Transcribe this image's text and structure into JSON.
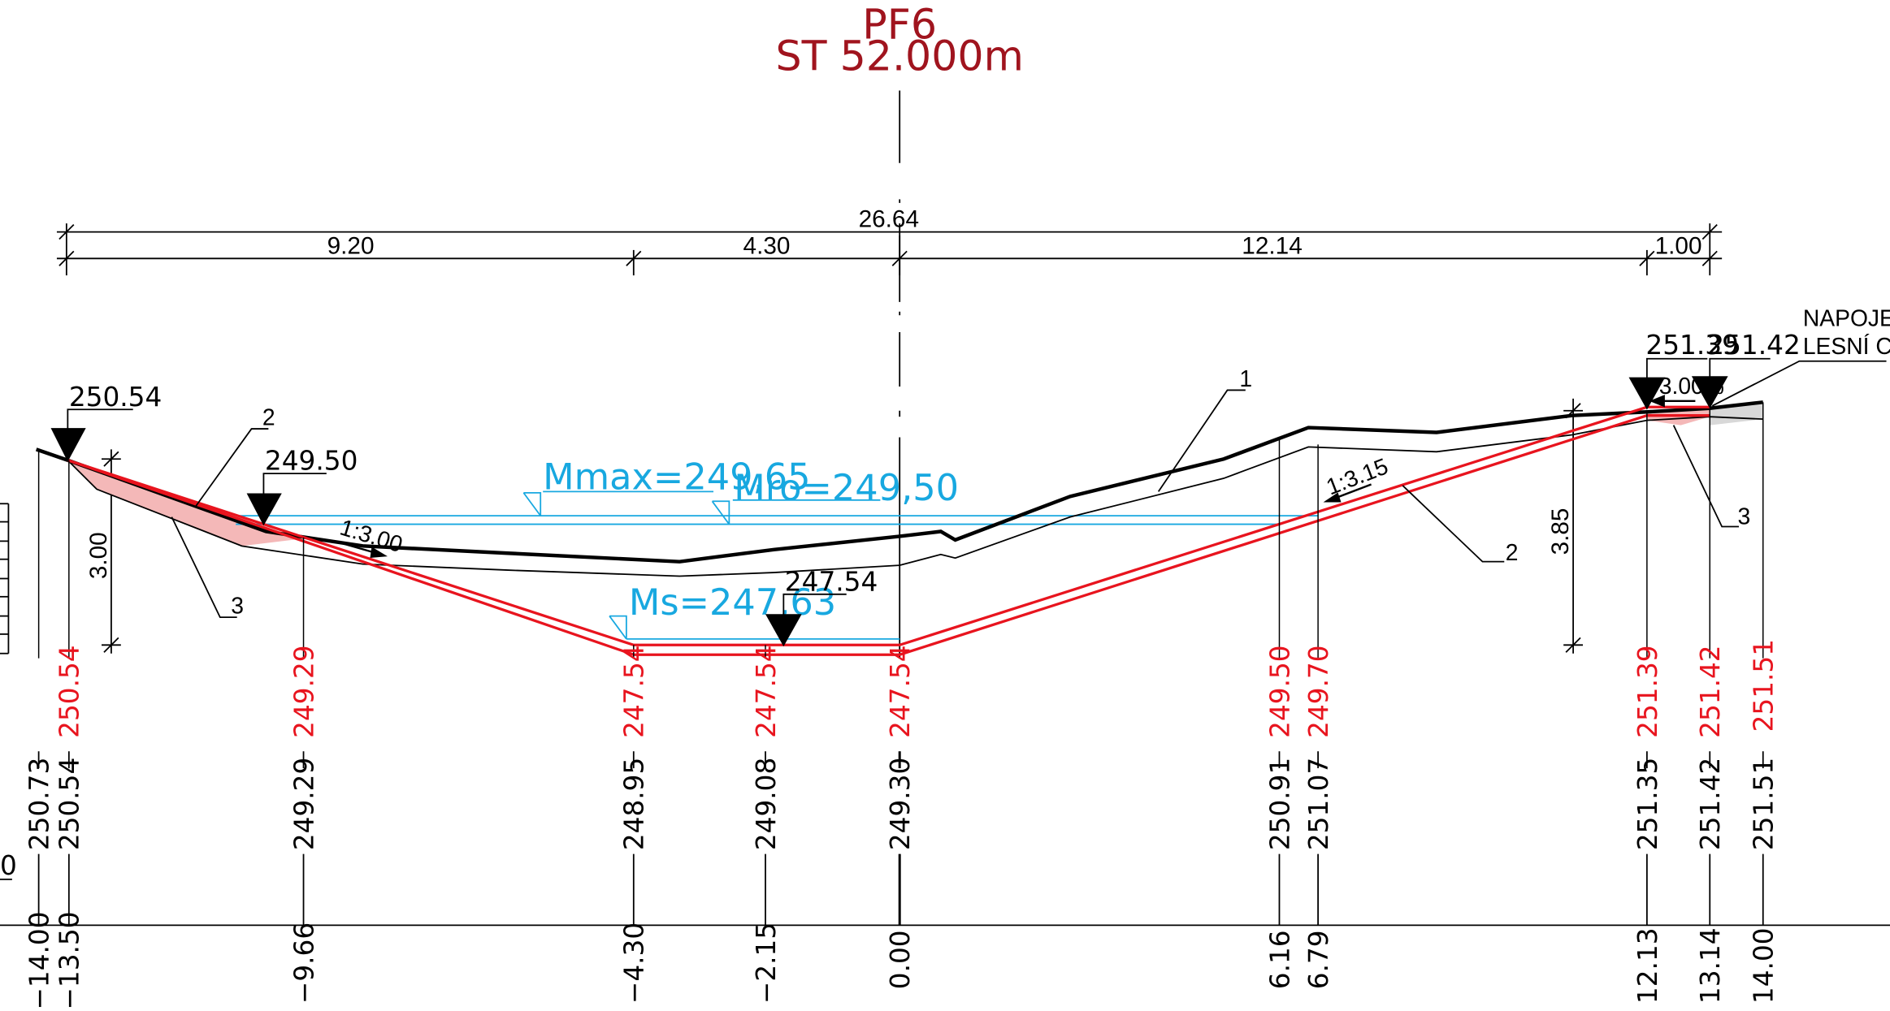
{
  "header": {
    "profile": "PF6",
    "station": "ST 52.000m"
  },
  "dimensions": {
    "total": "26.64",
    "d1": "9.20",
    "d2": "4.30",
    "d3": "12.14",
    "d4": "1.00"
  },
  "heights": {
    "left": "3.00",
    "right": "3.85"
  },
  "slopes": {
    "left": "1:3.00",
    "right": "1:3.15",
    "top": "3.00%"
  },
  "elevation_labels": {
    "left_crest": "250.54",
    "left_bank": "249.50",
    "bottom": "247.54",
    "right_a": "251.39",
    "right_b": "251.42"
  },
  "water_levels": {
    "max": "Mmax=249,65",
    "ro": "Mro=249,50",
    "s": "Ms=247,63"
  },
  "callouts": {
    "c1": "1",
    "c2": "2",
    "c3": "3"
  },
  "note": {
    "line1": "NAPOJENÍ NA",
    "line2": "LESNÍ CESTU"
  },
  "left_fragment_text": "0",
  "design_elevations": [
    {
      "v": "250.54"
    },
    {
      "v": "249.29"
    },
    {
      "v": "247.54"
    },
    {
      "v": "247.54"
    },
    {
      "v": "247.54"
    },
    {
      "v": "249.50"
    },
    {
      "v": "249.70"
    },
    {
      "v": "251.39"
    },
    {
      "v": "251.42"
    },
    {
      "v": "251.51"
    }
  ],
  "terrain_elevations": [
    {
      "v": "250.73"
    },
    {
      "v": "250.54"
    },
    {
      "v": "249.29"
    },
    {
      "v": "248.95"
    },
    {
      "v": "249.08"
    },
    {
      "v": "249.30"
    },
    {
      "v": "250.91"
    },
    {
      "v": "251.07"
    },
    {
      "v": "251.35"
    },
    {
      "v": "251.42"
    },
    {
      "v": "251.51"
    }
  ],
  "stations": [
    {
      "v": "−14.00"
    },
    {
      "v": "−13.50"
    },
    {
      "v": "−9.66"
    },
    {
      "v": "−4.30"
    },
    {
      "v": "−2.15"
    },
    {
      "v": "0.00"
    },
    {
      "v": "6.16"
    },
    {
      "v": "6.79"
    },
    {
      "v": "12.13"
    },
    {
      "v": "13.14"
    },
    {
      "v": "14.00"
    }
  ],
  "colors": {
    "design": "#e8141e",
    "title": "#a0141e",
    "water": "#18a8e0",
    "terrain": "#000000",
    "fill": "#f4b8b8"
  }
}
